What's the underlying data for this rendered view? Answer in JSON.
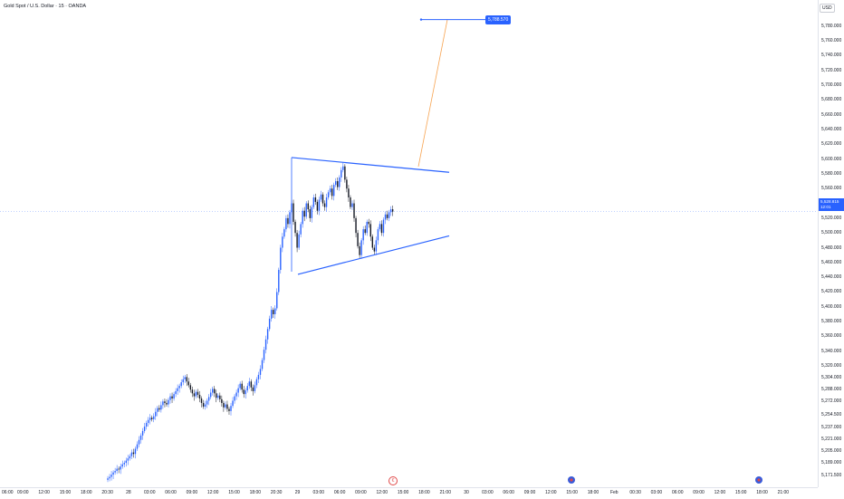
{
  "header": {
    "symbol": "Gold Spot / U.S. Dollar · 15 · OANDA"
  },
  "price_axis": {
    "currency": "USD",
    "ticks": [
      {
        "value": 5780,
        "label": "5,780.000"
      },
      {
        "value": 5760,
        "label": "5,760.000"
      },
      {
        "value": 5740,
        "label": "5,740.000"
      },
      {
        "value": 5720,
        "label": "5,720.000"
      },
      {
        "value": 5700,
        "label": "5,700.000"
      },
      {
        "value": 5680,
        "label": "5,680.000"
      },
      {
        "value": 5660,
        "label": "5,660.000"
      },
      {
        "value": 5640,
        "label": "5,640.000"
      },
      {
        "value": 5620,
        "label": "5,620.000"
      },
      {
        "value": 5600,
        "label": "5,600.000"
      },
      {
        "value": 5580,
        "label": "5,580.000"
      },
      {
        "value": 5560,
        "label": "5,560.000"
      },
      {
        "value": 5520,
        "label": "5,520.000"
      },
      {
        "value": 5500,
        "label": "5,500.000"
      },
      {
        "value": 5480,
        "label": "5,480.000"
      },
      {
        "value": 5460,
        "label": "5,460.000"
      },
      {
        "value": 5440,
        "label": "5,440.000"
      },
      {
        "value": 5420,
        "label": "5,420.000"
      },
      {
        "value": 5400,
        "label": "5,400.000"
      },
      {
        "value": 5380,
        "label": "5,380.000"
      },
      {
        "value": 5360,
        "label": "5,360.000"
      },
      {
        "value": 5340,
        "label": "5,340.000"
      },
      {
        "value": 5320,
        "label": "5,320.000"
      },
      {
        "value": 5304,
        "label": "5,304.000"
      },
      {
        "value": 5288,
        "label": "5,288.000"
      },
      {
        "value": 5272,
        "label": "5,272.000"
      },
      {
        "value": 5254.5,
        "label": "5,254.500"
      },
      {
        "value": 5237,
        "label": "5,237.000"
      },
      {
        "value": 5221,
        "label": "5,221.000"
      },
      {
        "value": 5205,
        "label": "5,205.000"
      },
      {
        "value": 5189,
        "label": "5,189.000"
      },
      {
        "value": 5171.5,
        "label": "5,171.500"
      }
    ],
    "current_price": "5,528.815",
    "countdown": "12:01"
  },
  "time_axis": {
    "labels": [
      "06:00",
      "09:00",
      "12:00",
      "15:00",
      "18:00",
      "20:30",
      "28",
      "03:00",
      "06:00",
      "09:00",
      "12:00",
      "15:00",
      "18:00",
      "20:30",
      "29",
      "03:00",
      "06:00",
      "09:00",
      "12:00",
      "15:00",
      "18:00",
      "21:00",
      "30",
      "03:00",
      "06:00",
      "09:00",
      "12:00",
      "15:00",
      "18:00",
      "Feb",
      "00:30",
      "03:00",
      "06:00",
      "09:00",
      "12:00",
      "15:00",
      "18:00",
      "21:00"
    ]
  },
  "target": {
    "label": "5,788.570"
  },
  "colors": {
    "accent": "#2962ff",
    "up": "#2962ff",
    "down": "#131722",
    "projection": "#f7a452"
  },
  "icons": {
    "earnings": "earnings-icon",
    "flag": "us-flag-icon"
  },
  "events": {
    "earnings_glyph": "€"
  },
  "chart_data": {
    "type": "candlestick",
    "ylim": [
      5171.5,
      5800
    ],
    "last_price": 5528.815,
    "closes": [
      5168,
      5170,
      5173,
      5176,
      5178,
      5181,
      5180,
      5184,
      5187,
      5189,
      5192,
      5195,
      5198,
      5203,
      5201,
      5208,
      5214,
      5220,
      5226,
      5232,
      5238,
      5243,
      5247,
      5250,
      5248,
      5252,
      5258,
      5263,
      5261,
      5267,
      5272,
      5270,
      5268,
      5274,
      5279,
      5276,
      5282,
      5286,
      5290,
      5293,
      5298,
      5302,
      5305,
      5299,
      5294,
      5288,
      5283,
      5279,
      5285,
      5281,
      5276,
      5270,
      5265,
      5268,
      5273,
      5278,
      5284,
      5289,
      5283,
      5277,
      5280,
      5275,
      5270,
      5264,
      5268,
      5262,
      5259,
      5266,
      5273,
      5279,
      5284,
      5290,
      5296,
      5288,
      5282,
      5287,
      5293,
      5299,
      5291,
      5286,
      5294,
      5302,
      5308,
      5316,
      5328,
      5342,
      5356,
      5370,
      5384,
      5396,
      5390,
      5398,
      5420,
      5450,
      5480,
      5495,
      5505,
      5520,
      5512,
      5528,
      5540,
      5515,
      5500,
      5480,
      5498,
      5512,
      5530,
      5522,
      5540,
      5532,
      5520,
      5535,
      5548,
      5542,
      5530,
      5545,
      5552,
      5540,
      5535,
      5548,
      5555,
      5560,
      5550,
      5565,
      5570,
      5562,
      5575,
      5585,
      5590,
      5572,
      5560,
      5548,
      5535,
      5540,
      5520,
      5500,
      5482,
      5470,
      5490,
      5505,
      5500,
      5515,
      5512,
      5495,
      5480,
      5475,
      5490,
      5505,
      5512,
      5500,
      5518,
      5525,
      5520,
      5528,
      5532,
      5528.8
    ],
    "annotations": {
      "triangle_upper": [
        [
          5602
        ],
        [
          5582
        ]
      ],
      "triangle_lower": [
        [
          5444
        ],
        [
          5496
        ]
      ],
      "projection_target": 5788.57
    }
  }
}
